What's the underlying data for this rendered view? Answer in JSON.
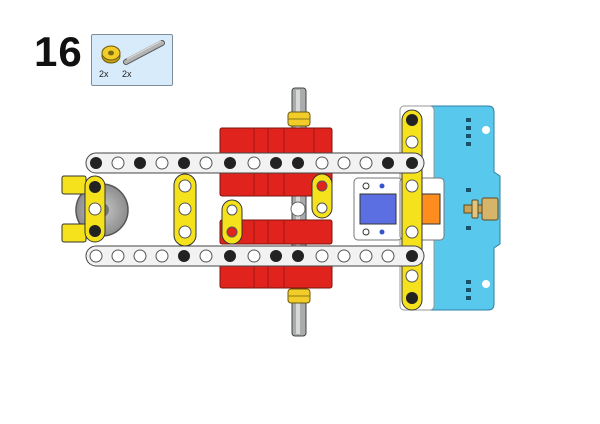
{
  "step": {
    "number": "16"
  },
  "parts_callout": {
    "items": [
      {
        "icon": "bushing-icon",
        "quantity": "2x",
        "color": "#f2cd2a"
      },
      {
        "icon": "axle-icon",
        "quantity": "2x",
        "color": "#9a9a9a"
      }
    ]
  },
  "colors": {
    "frame": "#f2f2f2",
    "yellow": "#f6e11d",
    "red": "#e0231c",
    "hub": "#58c8ec",
    "blue_window": "#5b6fe2",
    "orange_window": "#ff8c1f",
    "axle": "#a9abad"
  }
}
